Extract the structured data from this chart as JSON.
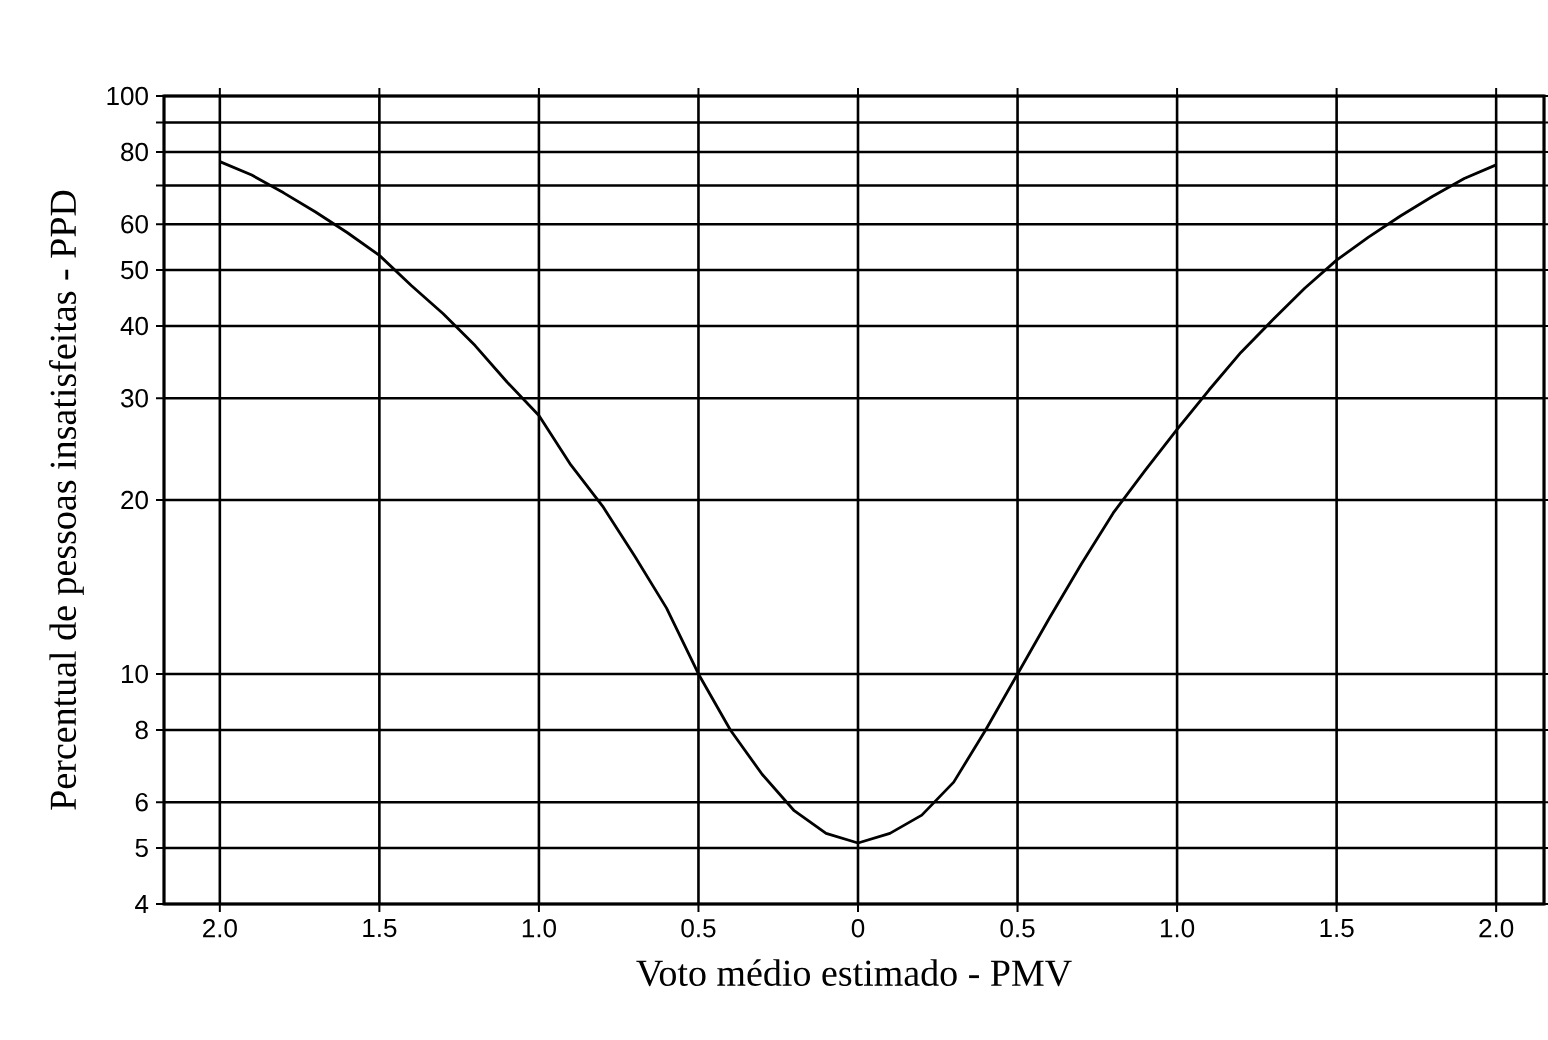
{
  "chart_data": {
    "type": "line",
    "xlabel": "Voto médio estimado - PMV",
    "ylabel": "Percentual de pessoas insatisfeitas - PPD",
    "x": [
      -2.0,
      -1.9,
      -1.8,
      -1.7,
      -1.6,
      -1.5,
      -1.4,
      -1.3,
      -1.2,
      -1.1,
      -1.0,
      -0.9,
      -0.8,
      -0.7,
      -0.6,
      -0.5,
      -0.4,
      -0.3,
      -0.2,
      -0.1,
      0,
      0.1,
      0.2,
      0.3,
      0.4,
      0.5,
      0.6,
      0.7,
      0.8,
      0.9,
      1.0,
      1.1,
      1.2,
      1.3,
      1.4,
      1.5,
      1.6,
      1.7,
      1.8,
      1.9,
      2.0
    ],
    "series": [
      {
        "color": "#000000",
        "values": [
          77,
          73,
          68,
          63,
          58,
          53,
          47,
          42,
          37,
          32,
          28,
          23,
          19.5,
          16,
          13,
          10,
          8,
          6.7,
          5.8,
          5.3,
          5.1,
          5.3,
          5.7,
          6.5,
          8,
          10,
          12.5,
          15.5,
          19,
          22.5,
          26.5,
          31,
          36,
          41,
          46.5,
          52,
          57,
          62,
          67,
          72,
          76
        ]
      }
    ],
    "log": "y",
    "grid": true,
    "xlim": [
      -2.175,
      2.15
    ],
    "xticks": [
      {
        "value": -2,
        "label": "2.0"
      },
      {
        "value": -1.5,
        "label": "1.5"
      },
      {
        "value": -1,
        "label": "1.0"
      },
      {
        "value": -0.5,
        "label": "0.5"
      },
      0,
      0.5,
      {
        "value": 1,
        "label": "1.0"
      },
      1.5,
      {
        "value": 2,
        "label": "2.0"
      }
    ],
    "ylim": [
      4,
      100
    ],
    "yticks": [
      4,
      5,
      6,
      8,
      10,
      20,
      30,
      40,
      50,
      60,
      {
        "value": 70,
        "label": null
      },
      80,
      {
        "value": 90,
        "label": null
      },
      100
    ]
  }
}
